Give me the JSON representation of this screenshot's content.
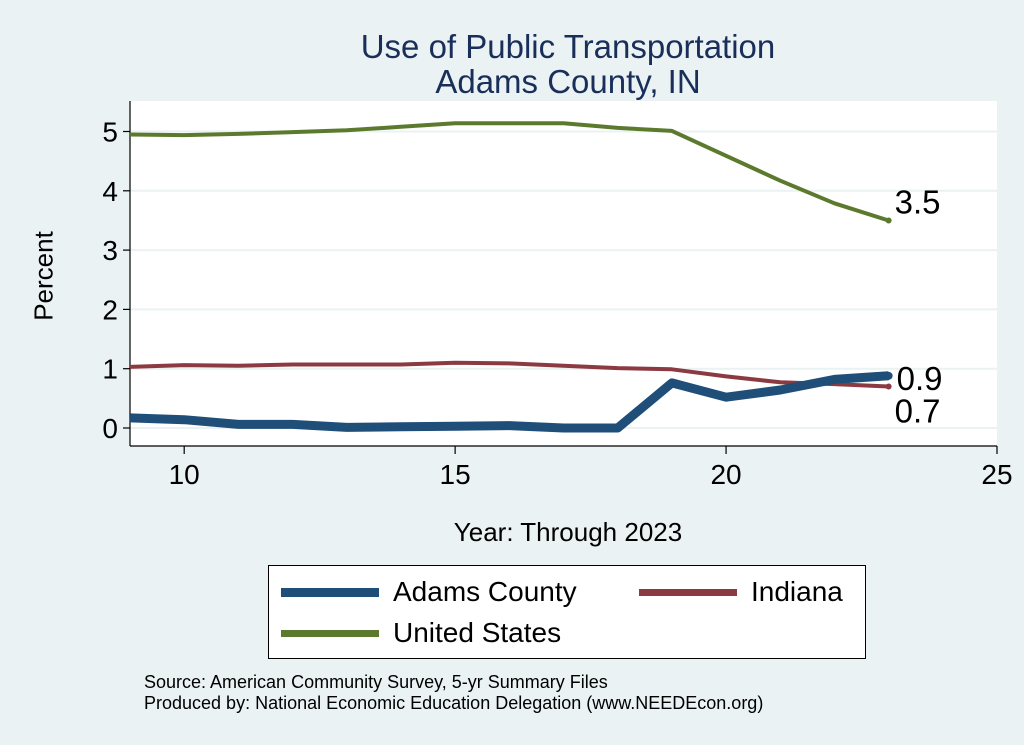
{
  "chart_data": {
    "type": "line",
    "title": [
      "Use of Public Transportation",
      "Adams County, IN"
    ],
    "xlabel": "Year: Through 2023",
    "ylabel": "Percent",
    "xlim": [
      9,
      25
    ],
    "ylim": [
      0,
      5.2
    ],
    "xticks": [
      10,
      15,
      20,
      25
    ],
    "yticks": [
      0,
      1,
      2,
      3,
      4,
      5
    ],
    "grid": true,
    "legend": "bottom",
    "x": [
      9,
      10,
      11,
      12,
      13,
      14,
      15,
      16,
      17,
      18,
      19,
      20,
      21,
      22,
      23
    ],
    "series": [
      {
        "name": "Adams County",
        "color": "#1f4e79",
        "width": 9,
        "values": [
          0.17,
          0.14,
          0.06,
          0.06,
          0.01,
          0.02,
          0.03,
          0.04,
          0.0,
          0.0,
          0.76,
          0.52,
          0.64,
          0.82,
          0.88
        ],
        "end_label": "0.9"
      },
      {
        "name": "Indiana",
        "color": "#8b3a42",
        "width": 4,
        "values": [
          1.03,
          1.06,
          1.05,
          1.07,
          1.07,
          1.07,
          1.1,
          1.09,
          1.05,
          1.01,
          0.99,
          0.87,
          0.77,
          0.74,
          0.7
        ],
        "end_label": "0.7"
      },
      {
        "name": "United States",
        "color": "#5c7a2e",
        "width": 4,
        "values": [
          4.95,
          4.94,
          4.96,
          4.99,
          5.02,
          5.08,
          5.14,
          5.14,
          5.14,
          5.06,
          5.01,
          4.59,
          4.17,
          3.79,
          3.5
        ],
        "end_label": "3.5"
      }
    ]
  },
  "source_lines": [
    "Source: American Community Survey, 5-yr Summary Files",
    "Produced by: National Economic Education Delegation (www.NEEDEcon.org)"
  ]
}
